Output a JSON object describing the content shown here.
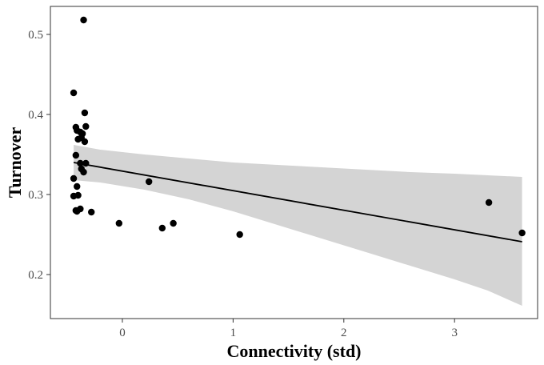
{
  "chart_data": {
    "type": "scatter",
    "title": "",
    "xlabel": "Connectivity (std)",
    "ylabel": "Turnover",
    "xlim": [
      -0.65,
      3.75
    ],
    "ylim": [
      0.145,
      0.535
    ],
    "x_ticks": [
      {
        "value": 0,
        "label": "0"
      },
      {
        "value": 1,
        "label": "1"
      },
      {
        "value": 2,
        "label": "2"
      },
      {
        "value": 3,
        "label": "3"
      }
    ],
    "y_ticks": [
      {
        "value": 0.2,
        "label": "0.2"
      },
      {
        "value": 0.3,
        "label": "0.3"
      },
      {
        "value": 0.4,
        "label": "0.4"
      },
      {
        "value": 0.5,
        "label": "0.5"
      }
    ],
    "grid": false,
    "points": [
      {
        "x": -0.35,
        "y": 0.518
      },
      {
        "x": -0.44,
        "y": 0.427
      },
      {
        "x": -0.34,
        "y": 0.402
      },
      {
        "x": -0.42,
        "y": 0.384
      },
      {
        "x": -0.33,
        "y": 0.385
      },
      {
        "x": -0.41,
        "y": 0.38
      },
      {
        "x": -0.38,
        "y": 0.378
      },
      {
        "x": -0.36,
        "y": 0.376
      },
      {
        "x": -0.37,
        "y": 0.371
      },
      {
        "x": -0.4,
        "y": 0.369
      },
      {
        "x": -0.34,
        "y": 0.366
      },
      {
        "x": -0.42,
        "y": 0.349
      },
      {
        "x": -0.38,
        "y": 0.339
      },
      {
        "x": -0.33,
        "y": 0.339
      },
      {
        "x": -0.37,
        "y": 0.332
      },
      {
        "x": -0.35,
        "y": 0.328
      },
      {
        "x": -0.44,
        "y": 0.32
      },
      {
        "x": -0.41,
        "y": 0.31
      },
      {
        "x": -0.4,
        "y": 0.299
      },
      {
        "x": -0.44,
        "y": 0.298
      },
      {
        "x": -0.38,
        "y": 0.282
      },
      {
        "x": -0.41,
        "y": 0.279
      },
      {
        "x": -0.42,
        "y": 0.28
      },
      {
        "x": -0.28,
        "y": 0.278
      },
      {
        "x": -0.03,
        "y": 0.264
      },
      {
        "x": 0.24,
        "y": 0.316
      },
      {
        "x": 0.36,
        "y": 0.258
      },
      {
        "x": 0.46,
        "y": 0.264
      },
      {
        "x": 1.06,
        "y": 0.25
      },
      {
        "x": 3.31,
        "y": 0.29
      },
      {
        "x": 3.61,
        "y": 0.252
      }
    ],
    "trend_line": {
      "x": [
        -0.44,
        3.61
      ],
      "y": [
        0.34,
        0.241
      ]
    },
    "confidence_band": {
      "x": [
        -0.44,
        -0.2,
        0.2,
        0.6,
        1.0,
        1.4,
        1.8,
        2.2,
        2.6,
        3.0,
        3.3,
        3.61
      ],
      "upper": [
        0.362,
        0.356,
        0.35,
        0.345,
        0.34,
        0.337,
        0.334,
        0.331,
        0.328,
        0.326,
        0.324,
        0.322
      ],
      "lower": [
        0.318,
        0.315,
        0.306,
        0.294,
        0.279,
        0.262,
        0.245,
        0.228,
        0.211,
        0.194,
        0.18,
        0.161
      ]
    },
    "colors": {
      "points": "#000000",
      "line": "#000000",
      "band": "#d4d4d4",
      "panel_border": "#333333"
    }
  }
}
